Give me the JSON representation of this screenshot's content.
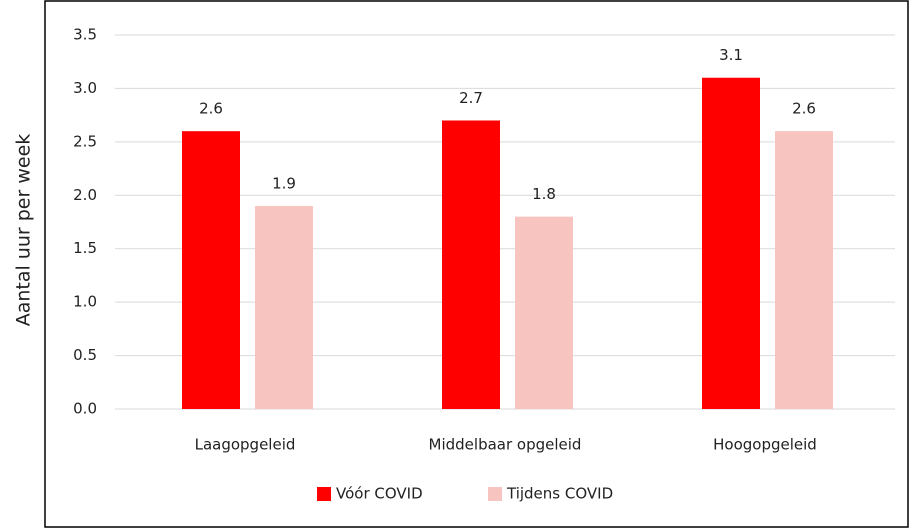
{
  "chart_data": {
    "type": "bar",
    "y_label": "Aantal uur per week",
    "categories": [
      "Laagopgeleid",
      "Middelbaar opgeleid",
      "Hoogopgeleid"
    ],
    "series": [
      {
        "name": "Vóór COVID",
        "color": "#ff0000",
        "values": [
          2.6,
          2.7,
          3.1
        ]
      },
      {
        "name": "Tijdens COVID",
        "color": "#f8c4bf",
        "values": [
          1.9,
          1.8,
          2.6
        ]
      }
    ],
    "ylim": [
      0,
      3.5
    ],
    "yticks": [
      {
        "value": 0,
        "label": "0.0"
      },
      0.5,
      {
        "value": 1,
        "label": "1.0"
      },
      1.5,
      {
        "value": 2,
        "label": "2.0"
      },
      2.5,
      {
        "value": 3,
        "label": "3.0"
      },
      3.5
    ],
    "grid": true,
    "legend": "bottom"
  }
}
